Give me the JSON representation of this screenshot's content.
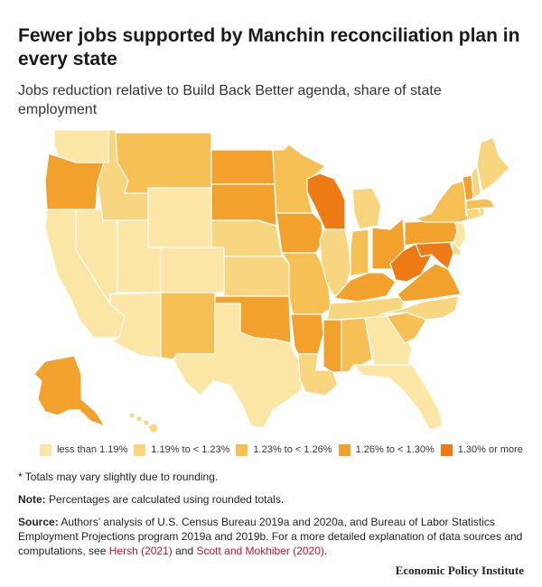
{
  "title": "Fewer jobs supported by Manchin reconciliation plan in every state",
  "subtitle": "Jobs reduction relative to Build Back Better agenda, share of state employment",
  "legend": [
    {
      "label": "less than 1.19%",
      "color": "#fbe6a6",
      "bin": 0
    },
    {
      "label": "1.19% to < 1.23%",
      "color": "#f8d57f",
      "bin": 1
    },
    {
      "label": "1.23% to < 1.26%",
      "color": "#f6c055",
      "bin": 2
    },
    {
      "label": "1.26% to < 1.30%",
      "color": "#f2a12c",
      "bin": 3
    },
    {
      "label": "1.30% or more",
      "color": "#ee7a14",
      "bin": 4
    }
  ],
  "footnote": "* Totals may vary slightly due to rounding.",
  "note_label": "Note:",
  "note_text": "Percentages are calculated using rounded totals.",
  "source_label": "Source:",
  "source_text": "Authors’ analysis of U.S. Census Bureau 2019a and 2020a, and Bureau of Labor Statistics Employment Projections program 2019a and 2019b. For a more detailed explanation of data sources and computations, see",
  "source_link1": "Hersh (2021)",
  "source_and": "and",
  "source_link2": "Scott and Mokhiber (2020)",
  "source_end": ".",
  "brand": "Economic Policy Institute",
  "chart_data": {
    "type": "choropleth",
    "bins": [
      "less than 1.19%",
      "1.19% to < 1.23%",
      "1.23% to < 1.26%",
      "1.26% to < 1.30%",
      "1.30% or more"
    ],
    "states": {
      "WA": 0,
      "OR": 3,
      "CA": 0,
      "NV": 0,
      "ID": 1,
      "MT": 2,
      "WY": 0,
      "UT": 0,
      "AZ": 0,
      "CO": 0,
      "NM": 2,
      "ND": 3,
      "SD": 3,
      "NE": 1,
      "KS": 1,
      "OK": 3,
      "TX": 0,
      "MN": 2,
      "IA": 3,
      "MO": 2,
      "AR": 3,
      "LA": 1,
      "WI": 4,
      "IL": 1,
      "MI": 1,
      "IN": 2,
      "OH": 3,
      "KY": 3,
      "TN": 1,
      "MS": 3,
      "AL": 2,
      "GA": 0,
      "FL": 0,
      "SC": 2,
      "NC": 1,
      "VA": 3,
      "WV": 4,
      "MD": 4,
      "DE": 1,
      "NJ": 0,
      "PA": 3,
      "NY": 2,
      "CT": 1,
      "RI": 1,
      "MA": 2,
      "VT": 3,
      "NH": 1,
      "ME": 1,
      "AK": 3,
      "HI": 1
    }
  }
}
